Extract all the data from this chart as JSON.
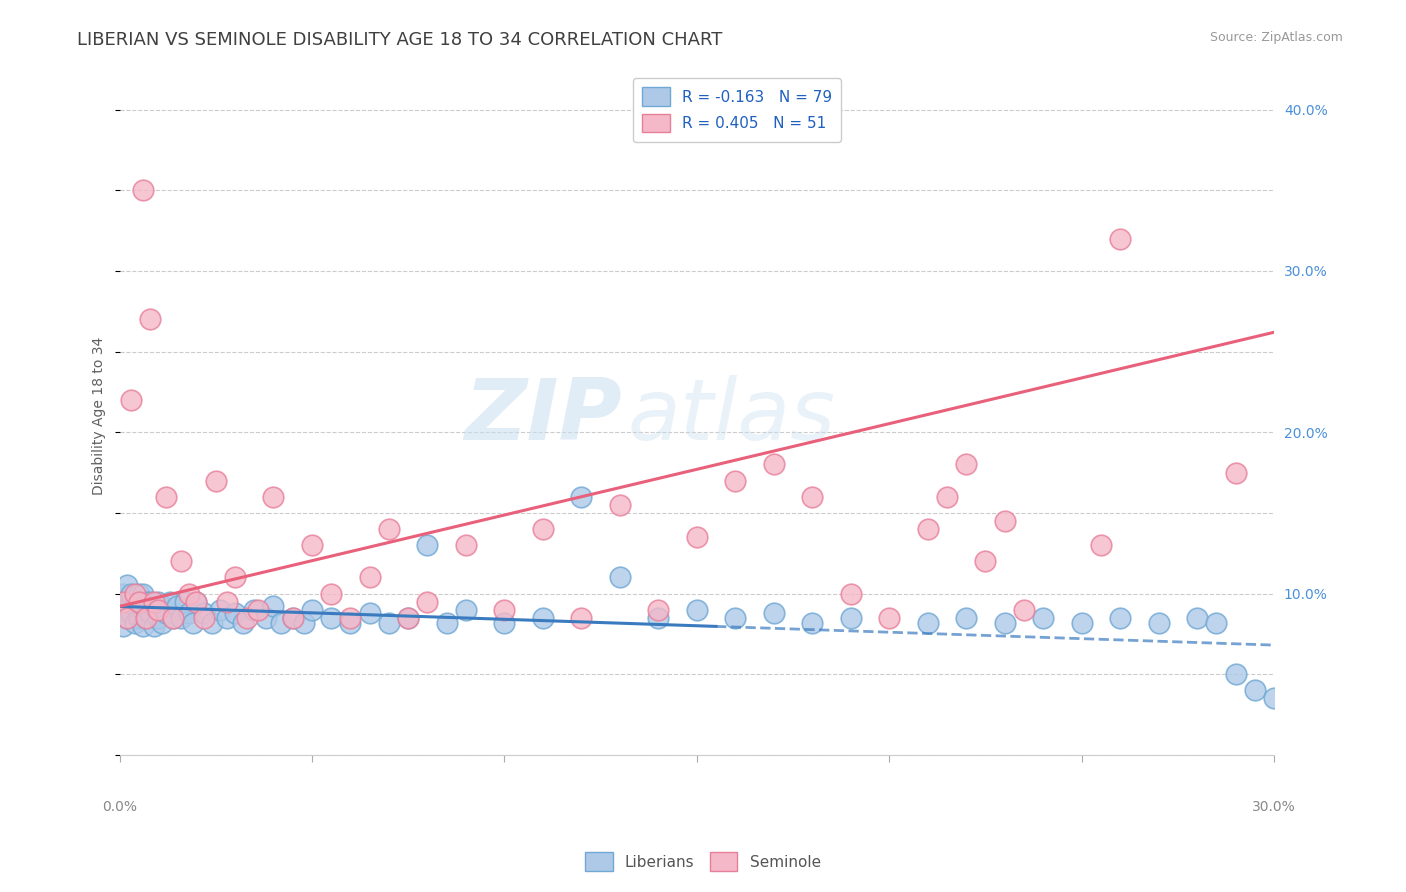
{
  "title": "LIBERIAN VS SEMINOLE DISABILITY AGE 18 TO 34 CORRELATION CHART",
  "source": "Source: ZipAtlas.com",
  "ylabel": "Disability Age 18 to 34",
  "ylabel_right_labels": [
    "",
    "10.0%",
    "20.0%",
    "30.0%",
    "40.0%"
  ],
  "xmin": 0.0,
  "xmax": 0.3,
  "ymin": 0.0,
  "ymax": 0.42,
  "legend_blue_label": "R = -0.163   N = 79",
  "legend_pink_label": "R = 0.405   N = 51",
  "blue_color": "#aec9e8",
  "blue_edge_color": "#6fa8d4",
  "pink_color": "#f4b8c8",
  "pink_edge_color": "#e87f9a",
  "blue_line_color": "#3a7bbf",
  "pink_line_color": "#e8607a",
  "watermark_zip": "ZIP",
  "watermark_atlas": "atlas",
  "blue_R": -0.163,
  "blue_N": 79,
  "pink_R": 0.405,
  "pink_N": 51,
  "blue_line_x0": 0.0,
  "blue_line_y0": 0.092,
  "blue_line_x1": 0.3,
  "blue_line_y1": 0.068,
  "blue_line_solid_x1": 0.155,
  "pink_line_x0": 0.0,
  "pink_line_y0": 0.092,
  "pink_line_x1": 0.3,
  "pink_line_y1": 0.262,
  "grid_color": "#cccccc",
  "background_color": "#ffffff",
  "title_color": "#404040",
  "axis_label_color": "#606060",
  "tick_label_color": "#888888",
  "blue_x": [
    0.001,
    0.001,
    0.001,
    0.002,
    0.002,
    0.002,
    0.003,
    0.003,
    0.003,
    0.004,
    0.004,
    0.005,
    0.005,
    0.005,
    0.006,
    0.006,
    0.006,
    0.007,
    0.007,
    0.008,
    0.008,
    0.009,
    0.009,
    0.01,
    0.01,
    0.011,
    0.011,
    0.012,
    0.013,
    0.014,
    0.015,
    0.016,
    0.017,
    0.018,
    0.019,
    0.02,
    0.022,
    0.024,
    0.026,
    0.028,
    0.03,
    0.032,
    0.035,
    0.038,
    0.04,
    0.042,
    0.045,
    0.048,
    0.05,
    0.055,
    0.06,
    0.065,
    0.07,
    0.075,
    0.08,
    0.085,
    0.09,
    0.1,
    0.11,
    0.12,
    0.13,
    0.14,
    0.15,
    0.16,
    0.17,
    0.18,
    0.19,
    0.21,
    0.22,
    0.23,
    0.24,
    0.25,
    0.26,
    0.27,
    0.28,
    0.285,
    0.29,
    0.295,
    0.3
  ],
  "blue_y": [
    0.08,
    0.09,
    0.1,
    0.085,
    0.095,
    0.105,
    0.088,
    0.095,
    0.1,
    0.082,
    0.092,
    0.085,
    0.095,
    0.1,
    0.08,
    0.09,
    0.1,
    0.085,
    0.095,
    0.088,
    0.095,
    0.08,
    0.092,
    0.085,
    0.095,
    0.082,
    0.092,
    0.088,
    0.095,
    0.085,
    0.092,
    0.085,
    0.095,
    0.088,
    0.082,
    0.095,
    0.088,
    0.082,
    0.09,
    0.085,
    0.088,
    0.082,
    0.09,
    0.085,
    0.092,
    0.082,
    0.085,
    0.082,
    0.09,
    0.085,
    0.082,
    0.088,
    0.082,
    0.085,
    0.13,
    0.082,
    0.09,
    0.082,
    0.085,
    0.16,
    0.11,
    0.085,
    0.09,
    0.085,
    0.088,
    0.082,
    0.085,
    0.082,
    0.085,
    0.082,
    0.085,
    0.082,
    0.085,
    0.082,
    0.085,
    0.082,
    0.05,
    0.04,
    0.035
  ],
  "pink_x": [
    0.001,
    0.002,
    0.003,
    0.004,
    0.005,
    0.006,
    0.007,
    0.008,
    0.009,
    0.01,
    0.012,
    0.014,
    0.016,
    0.018,
    0.02,
    0.022,
    0.025,
    0.028,
    0.03,
    0.033,
    0.036,
    0.04,
    0.045,
    0.05,
    0.055,
    0.06,
    0.065,
    0.07,
    0.075,
    0.08,
    0.09,
    0.1,
    0.11,
    0.12,
    0.13,
    0.14,
    0.15,
    0.16,
    0.17,
    0.18,
    0.19,
    0.2,
    0.21,
    0.215,
    0.22,
    0.225,
    0.23,
    0.235,
    0.255,
    0.26,
    0.29
  ],
  "pink_y": [
    0.095,
    0.085,
    0.22,
    0.1,
    0.095,
    0.35,
    0.085,
    0.27,
    0.095,
    0.09,
    0.16,
    0.085,
    0.12,
    0.1,
    0.095,
    0.085,
    0.17,
    0.095,
    0.11,
    0.085,
    0.09,
    0.16,
    0.085,
    0.13,
    0.1,
    0.085,
    0.11,
    0.14,
    0.085,
    0.095,
    0.13,
    0.09,
    0.14,
    0.085,
    0.155,
    0.09,
    0.135,
    0.17,
    0.18,
    0.16,
    0.1,
    0.085,
    0.14,
    0.16,
    0.18,
    0.12,
    0.145,
    0.09,
    0.13,
    0.32,
    0.175
  ]
}
